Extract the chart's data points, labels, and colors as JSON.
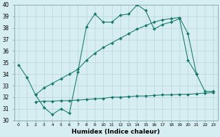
{
  "line1_x": [
    0,
    1,
    2,
    3,
    4,
    5,
    6,
    7,
    8,
    9,
    10,
    11,
    12,
    13,
    14,
    15,
    16,
    17,
    18,
    19,
    20,
    21,
    22,
    23
  ],
  "line1_y": [
    34.8,
    33.7,
    32.2,
    31.1,
    30.5,
    31.0,
    30.6,
    34.2,
    38.1,
    39.2,
    38.5,
    38.5,
    39.1,
    39.2,
    40.0,
    39.5,
    37.9,
    38.3,
    38.5,
    38.8,
    35.2,
    34.0,
    32.5,
    32.5
  ],
  "line2_x": [
    2,
    3,
    4,
    5,
    6,
    7,
    8,
    9,
    10,
    11,
    12,
    13,
    14,
    15,
    16,
    17,
    18,
    19,
    20,
    21
  ],
  "line2_y": [
    32.2,
    32.8,
    33.2,
    33.6,
    34.0,
    34.4,
    35.2,
    35.8,
    36.3,
    36.7,
    37.1,
    37.5,
    37.9,
    38.2,
    38.5,
    38.7,
    38.8,
    38.9,
    37.5,
    34.0
  ],
  "line3_x": [
    2,
    3,
    4,
    5,
    6,
    7,
    8,
    9,
    10,
    11,
    12,
    13,
    14,
    15,
    16,
    17,
    18,
    19,
    20,
    21,
    22,
    23
  ],
  "line3_y": [
    31.6,
    31.65,
    31.65,
    31.7,
    31.7,
    31.75,
    31.8,
    31.85,
    31.9,
    32.0,
    32.0,
    32.05,
    32.1,
    32.1,
    32.15,
    32.2,
    32.2,
    32.25,
    32.25,
    32.3,
    32.35,
    32.4
  ],
  "color": "#1a7a6e",
  "bg_color": "#d6eef2",
  "grid_color": "#b8d4d8",
  "xlabel": "Humidex (Indice chaleur)",
  "xlim": [
    -0.5,
    23.5
  ],
  "ylim": [
    30,
    40
  ],
  "yticks": [
    30,
    31,
    32,
    33,
    34,
    35,
    36,
    37,
    38,
    39,
    40
  ],
  "xticks": [
    0,
    1,
    2,
    3,
    4,
    5,
    6,
    7,
    8,
    9,
    10,
    11,
    12,
    13,
    14,
    15,
    16,
    17,
    18,
    19,
    20,
    21,
    22,
    23
  ],
  "xtick_labels": [
    "0",
    "1",
    "2",
    "3",
    "4",
    "5",
    "6",
    "7",
    "8",
    "9",
    "10",
    "11",
    "12",
    "13",
    "14",
    "15",
    "16",
    "17",
    "18",
    "19",
    "20",
    "21",
    "22",
    "23"
  ],
  "marker": "D",
  "markersize": 2.0,
  "linewidth": 0.8,
  "ytick_fontsize": 5.5,
  "xtick_fontsize": 4.5,
  "xlabel_fontsize": 6.5
}
